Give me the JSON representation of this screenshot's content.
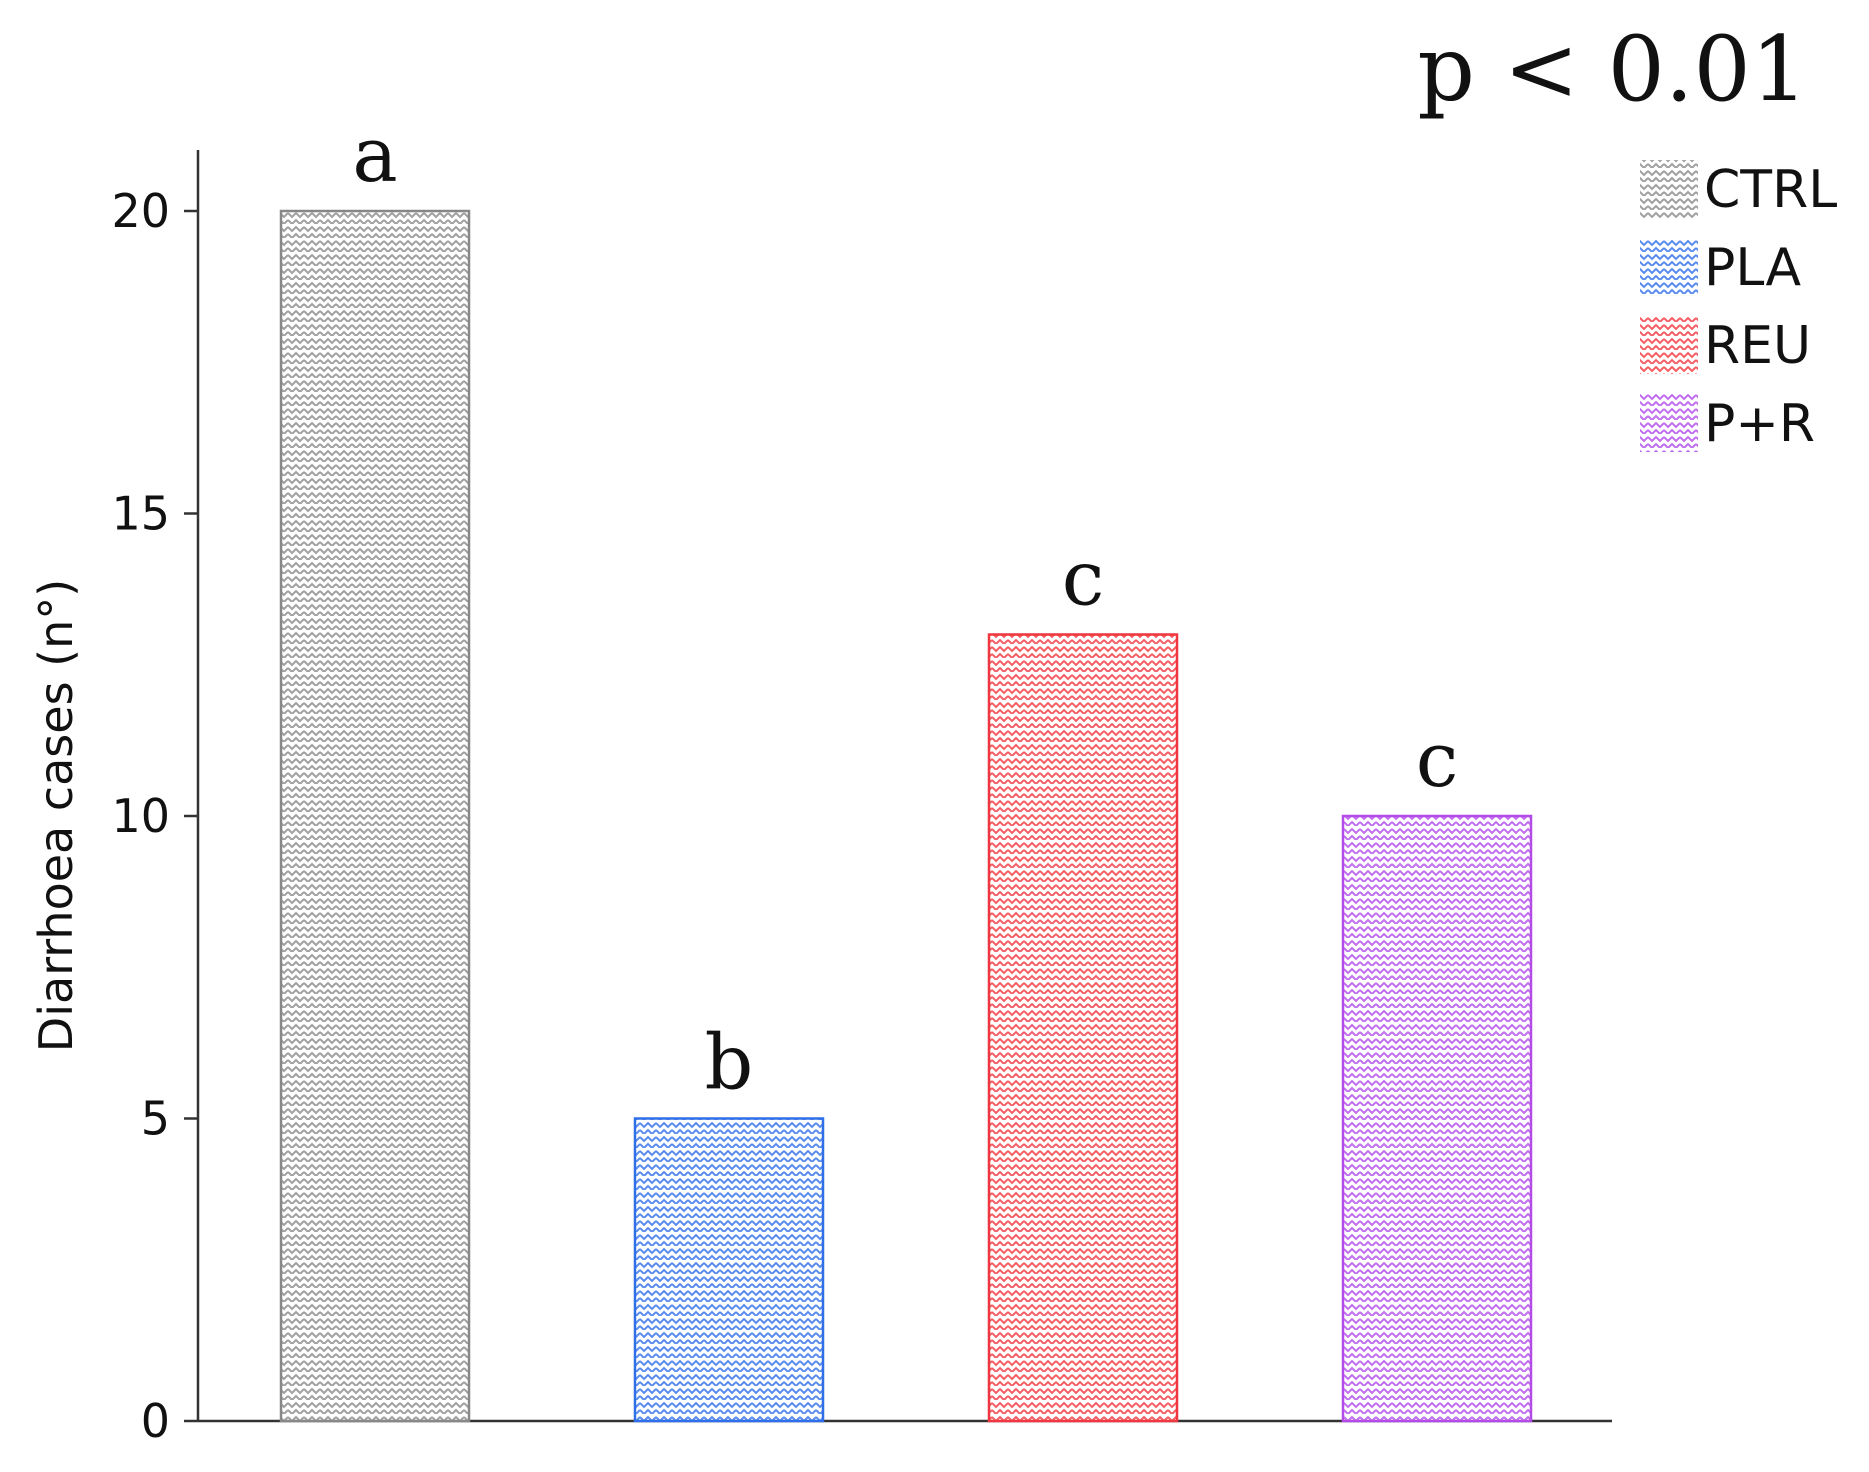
{
  "chart_data": {
    "type": "bar",
    "categories": [
      "CTRL",
      "PLA",
      "REU",
      "P+R"
    ],
    "values": [
      20,
      5,
      13,
      10
    ],
    "group_letters": [
      "a",
      "b",
      "c",
      "c"
    ],
    "colors": [
      "#888888",
      "#2f6fe8",
      "#f0363f",
      "#b24be8"
    ],
    "pattern": "zigzag",
    "annotation": "p < 0.01",
    "title": "",
    "xlabel": "",
    "ylabel": "Diarrhoea cases (n°)",
    "ylim": [
      0,
      21
    ],
    "yticks": [
      0,
      5,
      10,
      15,
      20
    ],
    "legend": {
      "position": "top-right",
      "entries": [
        "CTRL",
        "PLA",
        "REU",
        "P+R"
      ]
    },
    "grid": false
  }
}
